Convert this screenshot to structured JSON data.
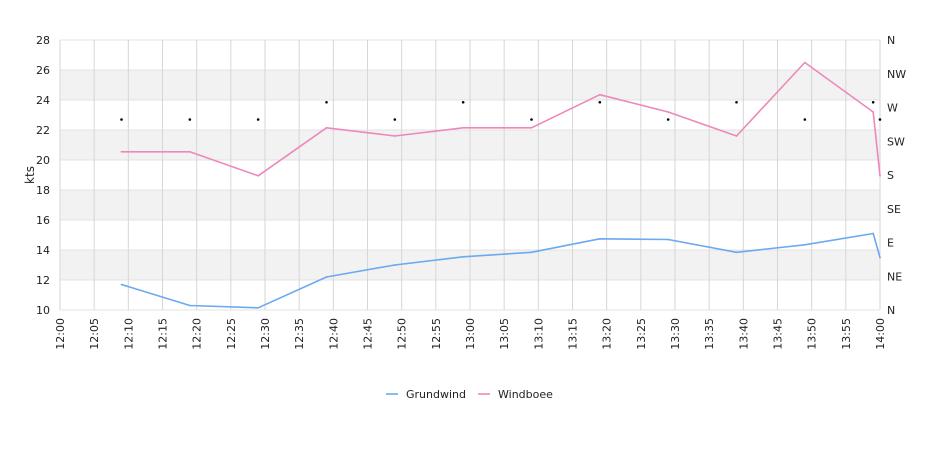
{
  "chart_data": {
    "type": "line",
    "ylabel": "kts",
    "ylim": [
      10,
      28
    ],
    "y_ticks": [
      "10",
      "12",
      "14",
      "16",
      "18",
      "20",
      "22",
      "24",
      "26",
      "28"
    ],
    "y2_ticks": [
      "N",
      "NE",
      "E",
      "SE",
      "S",
      "SW",
      "W",
      "NW",
      "N"
    ],
    "x_ticks": [
      "12:00",
      "12:05",
      "12:10",
      "12:15",
      "12:20",
      "12:25",
      "12:30",
      "12:35",
      "12:40",
      "12:45",
      "12:50",
      "12:55",
      "13:00",
      "13:05",
      "13:10",
      "13:15",
      "13:20",
      "13:25",
      "13:30",
      "13:35",
      "13:40",
      "13:45",
      "13:50",
      "13:55",
      "14:00"
    ],
    "xlim": [
      "12:00",
      "14:00"
    ],
    "grid": true,
    "bands": "alternating light grey bands between every other pair of y gridlines",
    "legend_position": "bottom-center",
    "series": [
      {
        "name": "Grundwind",
        "color": "#6aaaee",
        "x": [
          "12:09",
          "12:19",
          "12:29",
          "12:39",
          "12:49",
          "12:59",
          "13:09",
          "13:19",
          "13:29",
          "13:39",
          "13:49",
          "13:59",
          "14:00"
        ],
        "values": [
          11.7,
          10.3,
          10.15,
          12.2,
          13.0,
          13.55,
          13.85,
          14.75,
          14.7,
          13.85,
          14.35,
          15.1,
          13.5
        ]
      },
      {
        "name": "Windboee",
        "color": "#ee88bb",
        "x": [
          "12:09",
          "12:19",
          "12:29",
          "12:39",
          "12:49",
          "12:59",
          "13:09",
          "13:19",
          "13:29",
          "13:39",
          "13:49",
          "13:59",
          "14:00"
        ],
        "values": [
          20.55,
          20.55,
          18.95,
          22.15,
          21.6,
          22.15,
          22.15,
          24.35,
          23.2,
          21.6,
          26.5,
          23.2,
          18.95
        ]
      }
    ],
    "direction": {
      "marker_color": "#000000",
      "x": [
        "12:09",
        "12:19",
        "12:29",
        "12:39",
        "12:49",
        "12:59",
        "13:09",
        "13:19",
        "13:29",
        "13:39",
        "13:49",
        "13:59",
        "14:00"
      ],
      "values": [
        22.7,
        22.7,
        22.7,
        23.85,
        22.7,
        23.85,
        22.7,
        23.85,
        22.7,
        23.85,
        22.7,
        23.85,
        22.7
      ]
    }
  }
}
